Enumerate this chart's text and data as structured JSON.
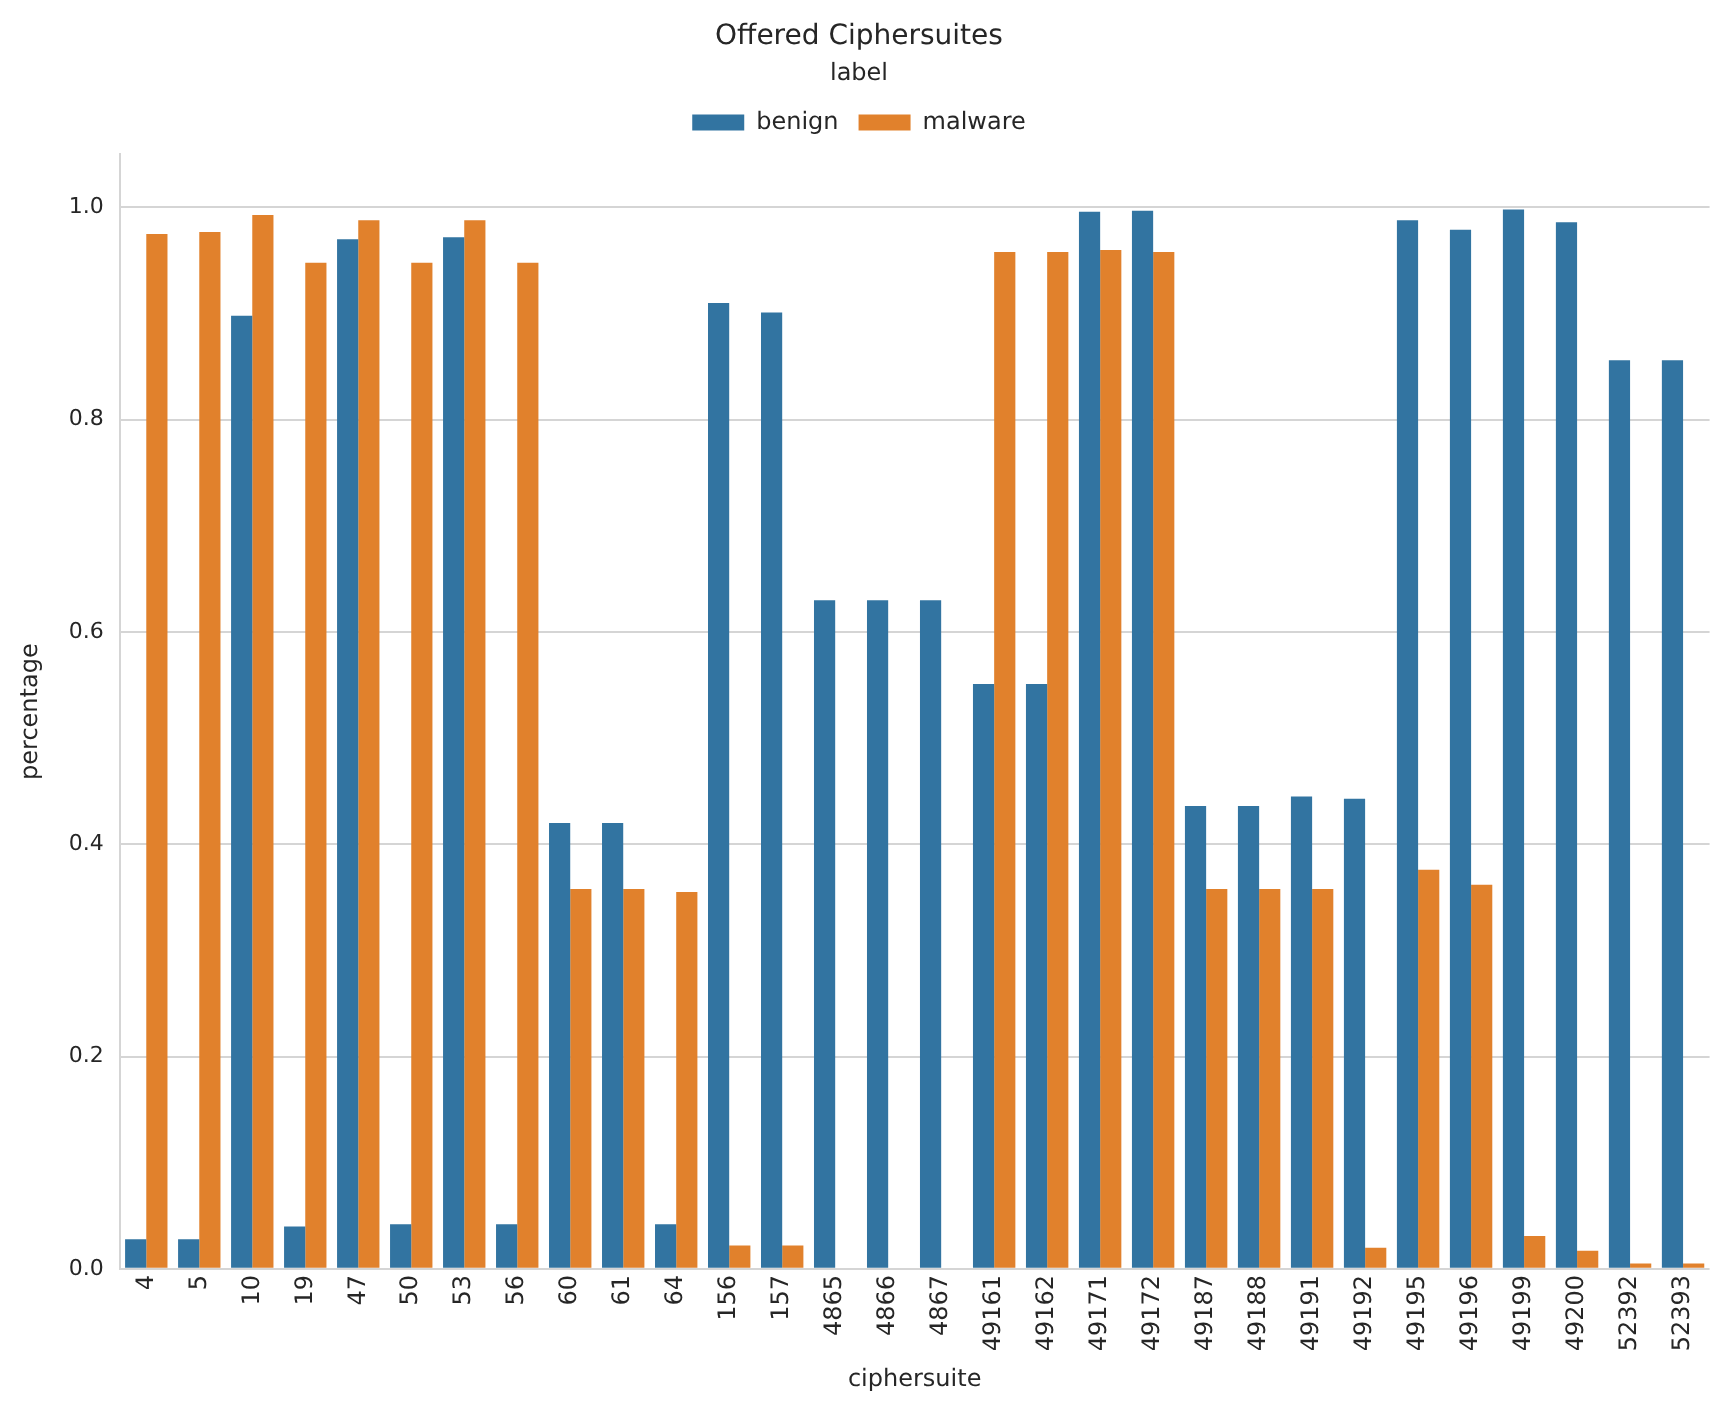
{
  "chart_data": {
    "type": "bar",
    "title": "Offered Ciphersuites",
    "xlabel": "ciphersuite",
    "ylabel": "percentage",
    "legend_title": "label",
    "categories": [
      "4",
      "5",
      "10",
      "19",
      "47",
      "50",
      "53",
      "56",
      "60",
      "61",
      "64",
      "156",
      "157",
      "4865",
      "4866",
      "4867",
      "49161",
      "49162",
      "49171",
      "49172",
      "49187",
      "49188",
      "49191",
      "49192",
      "49195",
      "49196",
      "49199",
      "49200",
      "52392",
      "52393"
    ],
    "series": [
      {
        "name": "benign",
        "color": "#3274a1",
        "values": [
          0.028,
          0.028,
          0.898,
          0.04,
          0.97,
          0.042,
          0.972,
          0.042,
          0.42,
          0.42,
          0.042,
          0.91,
          0.901,
          0.63,
          0.63,
          0.63,
          0.551,
          0.551,
          0.996,
          0.997,
          0.436,
          0.436,
          0.445,
          0.443,
          0.988,
          0.979,
          0.998,
          0.986,
          0.856,
          0.856
        ]
      },
      {
        "name": "malware",
        "color": "#e1812c",
        "values": [
          0.975,
          0.977,
          0.993,
          0.948,
          0.988,
          0.948,
          0.988,
          0.948,
          0.358,
          0.358,
          0.355,
          0.022,
          0.022,
          0,
          0,
          0,
          0.958,
          0.958,
          0.96,
          0.958,
          0.358,
          0.358,
          0.358,
          0.02,
          0.376,
          0.362,
          0.031,
          0.017,
          0.005,
          0.005
        ]
      }
    ],
    "ylim": [
      0,
      1.05
    ],
    "yticks": [
      {
        "value": 0,
        "label": "0.0"
      },
      0.2,
      0.4,
      0.6,
      0.8,
      {
        "value": 1,
        "label": "1.0"
      }
    ],
    "grid": "y",
    "legend": "top"
  }
}
